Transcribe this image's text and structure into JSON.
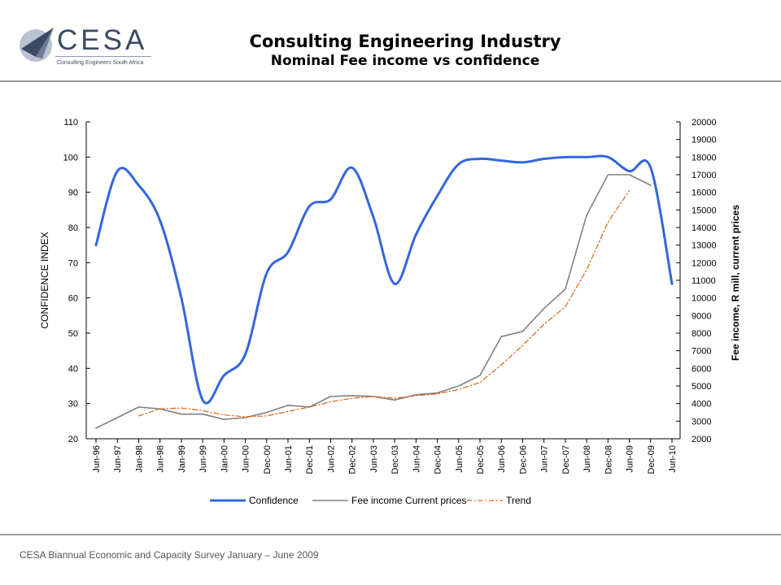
{
  "header": {
    "logo_text": "CESA",
    "logo_subtitle": "Consulting Engineers South Africa",
    "title": "Consulting Engineering Industry",
    "subtitle": "Nominal Fee income vs confidence"
  },
  "footer": {
    "text": "CESA Biannual Economic and Capacity Survey January – June 2009"
  },
  "colors": {
    "confidence": "#3366dd",
    "fee_income": "#808080",
    "trend": "#e06010"
  },
  "chart_data": {
    "type": "line",
    "title": "",
    "categories": [
      "Jun-96",
      "Jun-97",
      "Jan-98",
      "Jun-98",
      "Jan-99",
      "Jun-99",
      "Jan-00",
      "Jun-00",
      "Dec-00",
      "Jun-01",
      "Dec-01",
      "Jun-02",
      "Dec-02",
      "Jun-03",
      "Dec-03",
      "Jun-04",
      "Dec-04",
      "Jun-05",
      "Dec-05",
      "Jun-06",
      "Dec-06",
      "Jun-07",
      "Dec-07",
      "Jun-08",
      "Dec-08",
      "Jun-09",
      "Dec-09",
      "Jun-10"
    ],
    "ylabel": "CONFIDENCE INDEX",
    "y2label": "Fee income, R mill, current prices",
    "ylim": [
      20,
      110
    ],
    "y2lim": [
      2000,
      20000
    ],
    "yticks": [
      "20",
      "30",
      "40",
      "50",
      "60",
      "70",
      "80",
      "90",
      "100",
      "110"
    ],
    "y2ticks": [
      "2000",
      "3000",
      "4000",
      "5000",
      "6000",
      "7000",
      "8000",
      "9000",
      "10000",
      "11000",
      "12000",
      "13000",
      "14000",
      "15000",
      "16000",
      "17000",
      "18000",
      "19000",
      "20000"
    ],
    "legend_position": "bottom",
    "series": [
      {
        "name": "Confidence",
        "axis": "left",
        "values": [
          75,
          96,
          92,
          82,
          60,
          31,
          38,
          44,
          67,
          73,
          86,
          88,
          97,
          83,
          64,
          78,
          89,
          98,
          99.5,
          99,
          98.5,
          99.5,
          100,
          100,
          100,
          96,
          97,
          64
        ]
      },
      {
        "name": "Fee income Current prices",
        "axis": "right",
        "values": [
          2600,
          3200,
          3800,
          3700,
          3400,
          3400,
          3100,
          3200,
          3500,
          3900,
          3800,
          4400,
          4450,
          4400,
          4200,
          4500,
          4600,
          5000,
          5600,
          7800,
          8100,
          9400,
          10500,
          14700,
          17000,
          17000,
          16400,
          null
        ]
      },
      {
        "name": "Trend",
        "axis": "right",
        "values": [
          null,
          null,
          3300,
          3700,
          3750,
          3600,
          3350,
          3250,
          3300,
          3550,
          3800,
          4100,
          4300,
          4400,
          4300,
          4450,
          4550,
          4800,
          5200,
          6200,
          7300,
          8500,
          9500,
          11600,
          14300,
          16100,
          null,
          null
        ]
      }
    ]
  }
}
